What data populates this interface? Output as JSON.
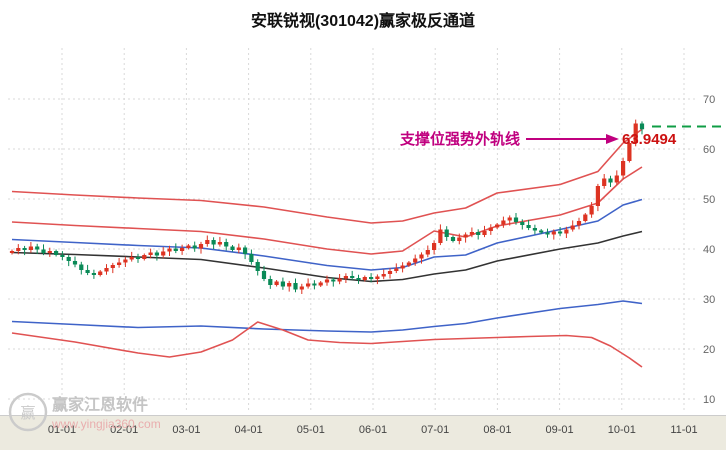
{
  "title": "安联锐视(301042)赢家极反通道",
  "annotation": {
    "label": "支撑位强势外轨线",
    "value": "63.9494",
    "label_color": "#c0007f",
    "value_color": "#cc1111"
  },
  "watermark": {
    "brand": "赢家江恩软件",
    "url": "www.yingjia360.com",
    "logo_text": "赢"
  },
  "chart_data": {
    "type": "candlestick",
    "title": "安联锐视(301042)赢家极反通道",
    "legend_position": "none",
    "grid": true,
    "y_axis": {
      "ticks": [
        70,
        60,
        50,
        40,
        30,
        20,
        10
      ],
      "min": 10,
      "max": 72
    },
    "x_axis": {
      "month_labels": [
        "01-01",
        "02-01",
        "03-01",
        "04-01",
        "05-01",
        "06-01",
        "07-01",
        "08-01",
        "09-01",
        "10-01",
        "11-01"
      ]
    },
    "candles": {
      "count": 101,
      "closes": [
        39.6,
        40.2,
        39.8,
        40.5,
        39.9,
        39.2,
        39.6,
        38.8,
        38.4,
        37.6,
        36.9,
        35.8,
        35.2,
        34.8,
        35.5,
        36.2,
        36.8,
        37.3,
        37.9,
        38.4,
        38.0,
        38.8,
        39.3,
        38.7,
        39.5,
        40.1,
        39.6,
        40.2,
        40.7,
        40.1,
        41.0,
        41.8,
        40.9,
        41.4,
        40.5,
        39.8,
        40.3,
        39.0,
        37.4,
        35.6,
        34.0,
        32.8,
        33.5,
        32.5,
        33.2,
        31.9,
        32.5,
        33.1,
        32.7,
        33.3,
        33.9,
        33.5,
        34.1,
        34.6,
        34.2,
        33.8,
        34.4,
        34.0,
        34.5,
        35.0,
        35.6,
        36.1,
        36.7,
        37.3,
        38.1,
        38.9,
        39.8,
        41.2,
        43.9,
        42.4,
        41.6,
        42.3,
        42.9,
        43.4,
        42.8,
        43.6,
        44.3,
        44.9,
        45.7,
        46.3,
        45.4,
        44.8,
        44.2,
        43.7,
        43.3,
        42.9,
        43.5,
        43.1,
        43.9,
        44.7,
        45.6,
        46.9,
        48.6,
        52.6,
        54.1,
        53.3,
        54.7,
        57.6,
        61.2,
        65.1,
        63.9494
      ],
      "last_price": 63.9494,
      "up_color": "#dd3322",
      "down_color": "#0a8a57"
    },
    "overlay_lines": [
      {
        "name": "upper-outer-rail-red",
        "color": "#e05252",
        "points": [
          [
            0,
            51.5
          ],
          [
            10,
            50.8
          ],
          [
            20,
            50.2
          ],
          [
            30,
            49.7
          ],
          [
            40,
            48.4
          ],
          [
            50,
            46.4
          ],
          [
            57,
            45.2
          ],
          [
            62,
            45.6
          ],
          [
            67,
            47.2
          ],
          [
            72,
            48.2
          ],
          [
            77,
            51.2
          ],
          [
            87,
            52.9
          ],
          [
            93,
            55.5
          ],
          [
            97,
            61.2
          ],
          [
            100,
            63.95
          ]
        ]
      },
      {
        "name": "upper-inner-rail-red",
        "color": "#e05252",
        "points": [
          [
            0,
            45.4
          ],
          [
            10,
            44.7
          ],
          [
            20,
            44.1
          ],
          [
            30,
            43.5
          ],
          [
            40,
            42.0
          ],
          [
            50,
            40.0
          ],
          [
            57,
            39.0
          ],
          [
            62,
            39.6
          ],
          [
            67,
            43.6
          ],
          [
            72,
            42.4
          ],
          [
            77,
            44.6
          ],
          [
            87,
            46.8
          ],
          [
            93,
            49.2
          ],
          [
            97,
            54.0
          ],
          [
            100,
            56.4
          ]
        ]
      },
      {
        "name": "upper-channel-blue",
        "color": "#3f63c8",
        "points": [
          [
            0,
            41.9
          ],
          [
            10,
            41.3
          ],
          [
            20,
            40.7
          ],
          [
            30,
            40.2
          ],
          [
            40,
            38.6
          ],
          [
            50,
            36.7
          ],
          [
            57,
            35.8
          ],
          [
            62,
            36.3
          ],
          [
            67,
            38.4
          ],
          [
            72,
            38.8
          ],
          [
            77,
            41.2
          ],
          [
            87,
            43.9
          ],
          [
            93,
            45.6
          ],
          [
            97,
            48.8
          ],
          [
            100,
            49.9
          ]
        ]
      },
      {
        "name": "life-line-black",
        "color": "#333333",
        "points": [
          [
            0,
            39.3
          ],
          [
            10,
            38.9
          ],
          [
            20,
            38.4
          ],
          [
            30,
            37.9
          ],
          [
            40,
            36.2
          ],
          [
            50,
            34.3
          ],
          [
            57,
            33.5
          ],
          [
            62,
            33.9
          ],
          [
            67,
            35.0
          ],
          [
            72,
            35.8
          ],
          [
            77,
            37.6
          ],
          [
            87,
            40.0
          ],
          [
            93,
            41.2
          ],
          [
            97,
            42.6
          ],
          [
            100,
            43.5
          ]
        ]
      },
      {
        "name": "lower-channel-blue",
        "color": "#3f63c8",
        "points": [
          [
            0,
            25.5
          ],
          [
            10,
            24.9
          ],
          [
            20,
            24.3
          ],
          [
            30,
            24.6
          ],
          [
            40,
            24.0
          ],
          [
            50,
            23.6
          ],
          [
            57,
            23.4
          ],
          [
            62,
            23.8
          ],
          [
            67,
            24.5
          ],
          [
            72,
            25.1
          ],
          [
            77,
            26.2
          ],
          [
            87,
            28.1
          ],
          [
            93,
            28.9
          ],
          [
            97,
            29.6
          ],
          [
            100,
            29.1
          ]
        ]
      },
      {
        "name": "lower-outer-rail-red",
        "color": "#e05252",
        "points": [
          [
            0,
            23.2
          ],
          [
            10,
            21.4
          ],
          [
            20,
            19.2
          ],
          [
            25,
            18.4
          ],
          [
            30,
            19.4
          ],
          [
            35,
            21.8
          ],
          [
            39,
            25.4
          ],
          [
            43,
            23.8
          ],
          [
            47,
            21.8
          ],
          [
            52,
            21.3
          ],
          [
            57,
            21.1
          ],
          [
            62,
            21.5
          ],
          [
            67,
            21.9
          ],
          [
            72,
            22.1
          ],
          [
            77,
            22.3
          ],
          [
            82,
            22.5
          ],
          [
            88,
            22.7
          ],
          [
            92,
            22.3
          ],
          [
            95,
            20.6
          ],
          [
            98,
            18.2
          ],
          [
            100,
            16.4
          ]
        ]
      }
    ],
    "projection": {
      "name": "rail-projection-green",
      "value": 64.5,
      "color": "#0f9d45"
    },
    "colors": {
      "grid": "#d9d9d9",
      "axis": "#cccccc",
      "bottom_strip": "#eceadf"
    }
  }
}
